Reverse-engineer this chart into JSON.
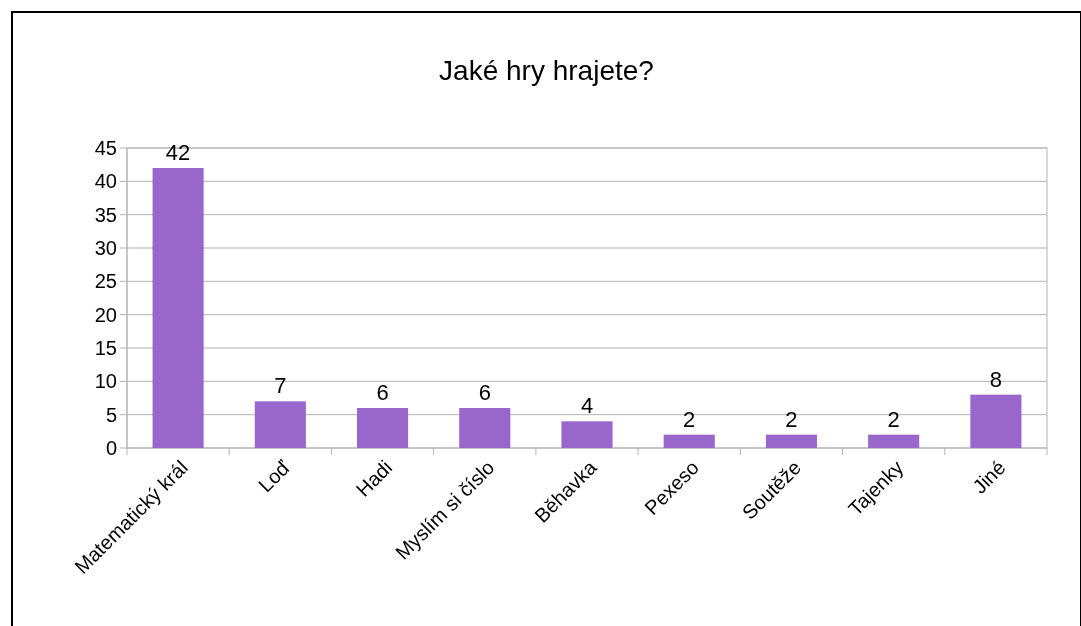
{
  "chart_data": {
    "type": "bar",
    "title": "Jaké hry hrajete?",
    "categories": [
      "Matematický král",
      "Loď",
      "Hadi",
      "Myslím si číslo",
      "Běhavka",
      "Pexeso",
      "Soutěže",
      "Tajenky",
      "Jiné"
    ],
    "values": [
      42,
      7,
      6,
      6,
      4,
      2,
      2,
      2,
      8
    ],
    "color": "#9966cc",
    "ylim": [
      0,
      45
    ],
    "yticks": [
      0,
      5,
      10,
      15,
      20,
      25,
      30,
      35,
      40,
      45
    ],
    "grid": "y",
    "data_labels": true
  }
}
